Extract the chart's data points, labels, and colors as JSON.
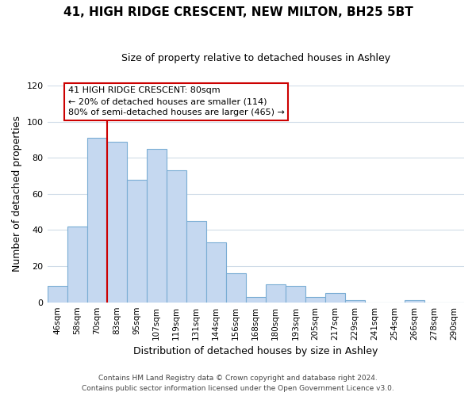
{
  "title": "41, HIGH RIDGE CRESCENT, NEW MILTON, BH25 5BT",
  "subtitle": "Size of property relative to detached houses in Ashley",
  "xlabel": "Distribution of detached houses by size in Ashley",
  "ylabel": "Number of detached properties",
  "bin_labels": [
    "46sqm",
    "58sqm",
    "70sqm",
    "83sqm",
    "95sqm",
    "107sqm",
    "119sqm",
    "131sqm",
    "144sqm",
    "156sqm",
    "168sqm",
    "180sqm",
    "193sqm",
    "205sqm",
    "217sqm",
    "229sqm",
    "241sqm",
    "254sqm",
    "266sqm",
    "278sqm",
    "290sqm"
  ],
  "bar_values": [
    9,
    42,
    91,
    89,
    68,
    85,
    73,
    45,
    33,
    16,
    3,
    10,
    9,
    3,
    5,
    1,
    0,
    0,
    1,
    0,
    0
  ],
  "bar_color": "#c5d8f0",
  "bar_edge_color": "#7aadd4",
  "vline_x": 2.5,
  "vline_color": "#cc0000",
  "ylim": [
    0,
    120
  ],
  "yticks": [
    0,
    20,
    40,
    60,
    80,
    100,
    120
  ],
  "annotation_title": "41 HIGH RIDGE CRESCENT: 80sqm",
  "annotation_line1": "← 20% of detached houses are smaller (114)",
  "annotation_line2": "80% of semi-detached houses are larger (465) →",
  "annotation_box_color": "#ffffff",
  "annotation_box_edge": "#cc0000",
  "footer_line1": "Contains HM Land Registry data © Crown copyright and database right 2024.",
  "footer_line2": "Contains public sector information licensed under the Open Government Licence v3.0.",
  "bg_color": "#ffffff",
  "grid_color": "#d0dce8"
}
